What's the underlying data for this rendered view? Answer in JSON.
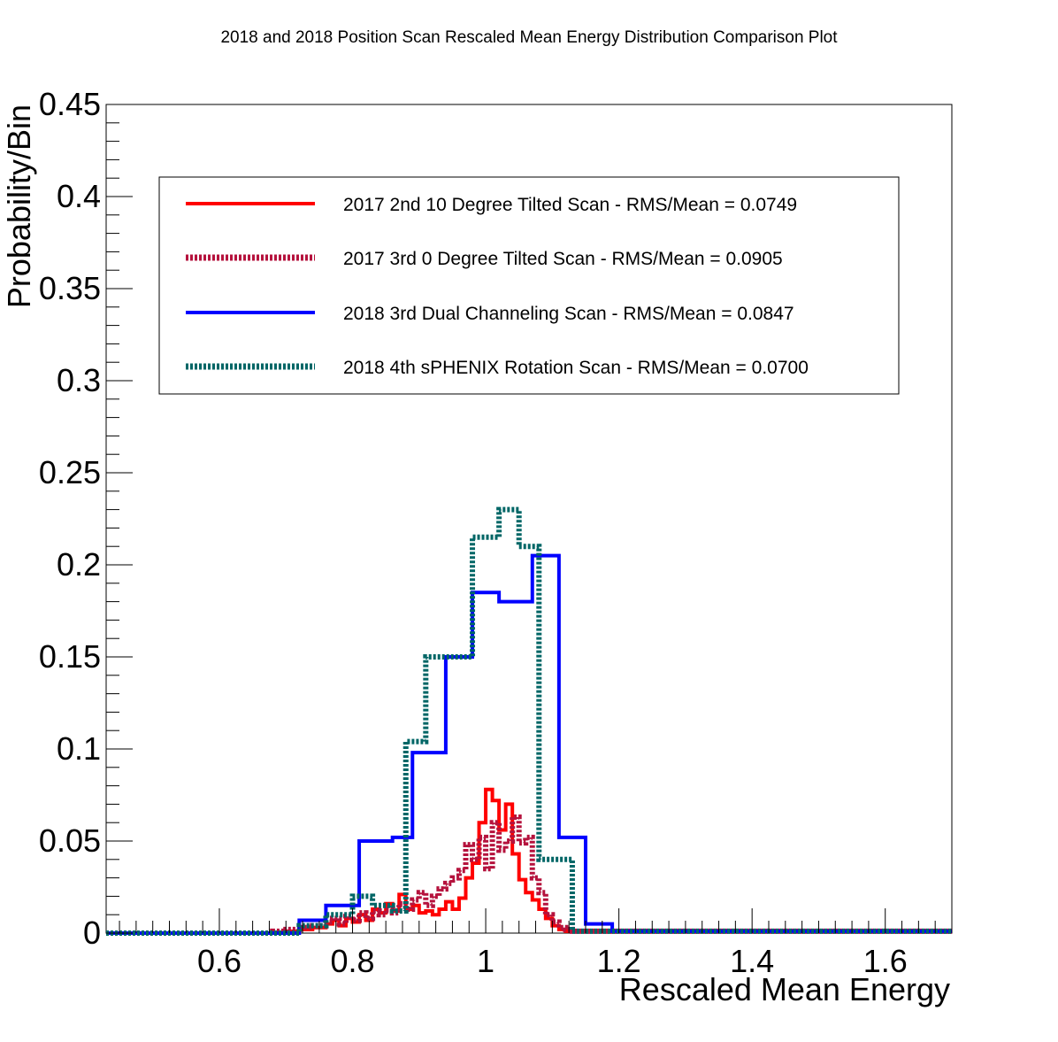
{
  "chart_data": {
    "type": "line",
    "title": "2018 and 2018 Position Scan Rescaled Mean Energy Distribution Comparison Plot",
    "xlabel": "Rescaled Mean Energy",
    "ylabel": "Probability/Bin",
    "xlim": [
      0.43,
      1.7
    ],
    "ylim": [
      0,
      0.45
    ],
    "x_ticks": [
      "0.6",
      "0.8",
      "1",
      "1.2",
      "1.4",
      "1.6"
    ],
    "y_ticks": [
      "0",
      "0.05",
      "0.1",
      "0.15",
      "0.2",
      "0.25",
      "0.3",
      "0.35",
      "0.4",
      "0.45"
    ],
    "x_tick_values": [
      0.6,
      0.8,
      1.0,
      1.2,
      1.4,
      1.6
    ],
    "y_tick_values": [
      0,
      0.05,
      0.1,
      0.15,
      0.2,
      0.25,
      0.3,
      0.35,
      0.4,
      0.45
    ],
    "grid": false,
    "legend_position": "top",
    "series": [
      {
        "name": "2017 2nd 10 Degree Tilted Scan - RMS/Mean = 0.0749",
        "color": "#ff0000",
        "style": "solid",
        "edges": [
          0.43,
          0.7,
          0.72,
          0.74,
          0.76,
          0.77,
          0.78,
          0.79,
          0.8,
          0.81,
          0.82,
          0.83,
          0.84,
          0.85,
          0.86,
          0.87,
          0.88,
          0.89,
          0.9,
          0.91,
          0.92,
          0.93,
          0.94,
          0.95,
          0.96,
          0.97,
          0.98,
          0.99,
          1.0,
          1.01,
          1.02,
          1.03,
          1.04,
          1.05,
          1.06,
          1.07,
          1.08,
          1.09,
          1.1,
          1.11,
          1.12,
          1.7
        ],
        "values": [
          0,
          0.001,
          0.002,
          0.003,
          0.005,
          0.007,
          0.004,
          0.008,
          0.006,
          0.01,
          0.007,
          0.013,
          0.011,
          0.016,
          0.012,
          0.021,
          0.013,
          0.015,
          0.011,
          0.012,
          0.01,
          0.013,
          0.017,
          0.013,
          0.019,
          0.03,
          0.038,
          0.06,
          0.078,
          0.072,
          0.056,
          0.07,
          0.043,
          0.029,
          0.022,
          0.018,
          0.013,
          0.008,
          0.004,
          0.002,
          0.001
        ]
      },
      {
        "name": "2017 3rd 0 Degree Tilted Scan - RMS/Mean = 0.0905",
        "color": "#b5123d",
        "style": "dotted",
        "edges": [
          0.43,
          0.68,
          0.7,
          0.72,
          0.74,
          0.76,
          0.77,
          0.78,
          0.79,
          0.8,
          0.81,
          0.82,
          0.83,
          0.84,
          0.85,
          0.86,
          0.87,
          0.88,
          0.89,
          0.9,
          0.91,
          0.92,
          0.93,
          0.94,
          0.95,
          0.96,
          0.97,
          0.98,
          0.99,
          1.0,
          1.01,
          1.02,
          1.03,
          1.04,
          1.05,
          1.06,
          1.07,
          1.08,
          1.09,
          1.1,
          1.11,
          1.12,
          1.13,
          1.7
        ],
        "values": [
          0,
          0.001,
          0.002,
          0.003,
          0.004,
          0.006,
          0.008,
          0.005,
          0.009,
          0.007,
          0.011,
          0.008,
          0.012,
          0.01,
          0.013,
          0.011,
          0.016,
          0.013,
          0.018,
          0.022,
          0.015,
          0.02,
          0.024,
          0.027,
          0.03,
          0.034,
          0.048,
          0.04,
          0.052,
          0.035,
          0.06,
          0.045,
          0.05,
          0.063,
          0.049,
          0.052,
          0.03,
          0.022,
          0.01,
          0.006,
          0.003,
          0.002,
          0.001
        ]
      },
      {
        "name": "2018 3rd Dual Channeling Scan - RMS/Mean = 0.0847",
        "color": "#0000ff",
        "style": "solid",
        "edges": [
          0.43,
          0.72,
          0.76,
          0.81,
          0.86,
          0.89,
          0.94,
          0.98,
          1.02,
          1.07,
          1.11,
          1.15,
          1.19,
          1.7
        ],
        "values": [
          0,
          0.007,
          0.015,
          0.05,
          0.052,
          0.098,
          0.15,
          0.185,
          0.18,
          0.205,
          0.052,
          0.005,
          0.001
        ]
      },
      {
        "name": "2018 4th sPHENIX Rotation Scan - RMS/Mean = 0.0700",
        "color": "#006666",
        "style": "dotted",
        "edges": [
          0.43,
          0.72,
          0.76,
          0.8,
          0.83,
          0.86,
          0.88,
          0.91,
          0.94,
          0.98,
          1.02,
          1.05,
          1.08,
          1.1,
          1.13,
          1.7
        ],
        "values": [
          0,
          0.004,
          0.01,
          0.02,
          0.015,
          0.012,
          0.104,
          0.15,
          0.15,
          0.215,
          0.23,
          0.21,
          0.04,
          0.04,
          0.001
        ]
      }
    ]
  }
}
